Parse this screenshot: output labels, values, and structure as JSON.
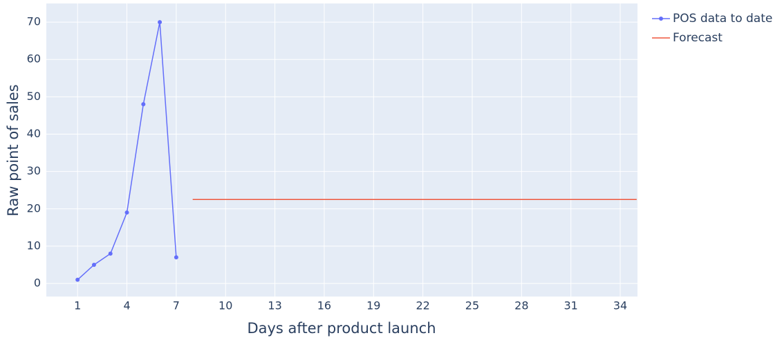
{
  "chart_data": {
    "type": "line",
    "x_label": "Days after product launch",
    "y_label": "Raw point of sales",
    "series": [
      {
        "name": "POS data to date",
        "color": "#636efa",
        "mode": "lines+markers",
        "x": [
          1,
          2,
          3,
          4,
          5,
          6,
          7
        ],
        "values": [
          1,
          5,
          8,
          19,
          48,
          70,
          7
        ]
      },
      {
        "name": "Forecast",
        "color": "#ef553b",
        "mode": "lines",
        "x": [
          8,
          35
        ],
        "values": [
          22.5,
          22.5
        ]
      }
    ],
    "xlim": [
      -0.9,
      35.05
    ],
    "xticks": [
      1,
      4,
      7,
      10,
      13,
      16,
      19,
      22,
      25,
      28,
      31,
      34
    ],
    "ylim": [
      -3.5,
      75
    ],
    "yticks": [
      0,
      10,
      20,
      30,
      40,
      50,
      60,
      70
    ],
    "grid": true,
    "legend": "outside-right"
  }
}
